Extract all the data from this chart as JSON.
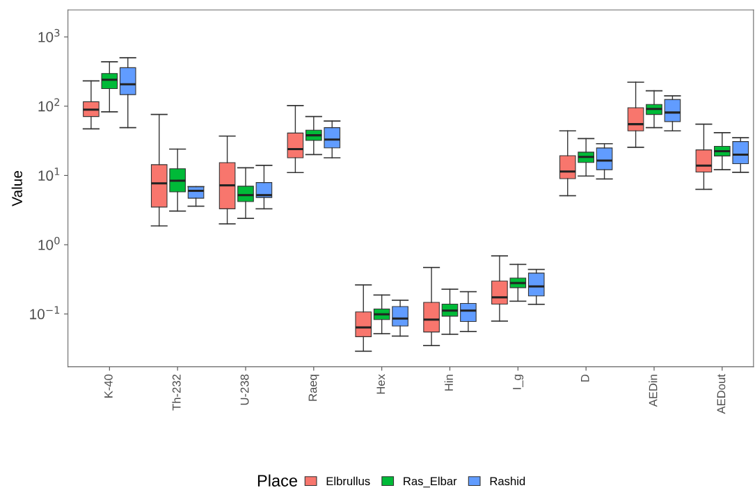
{
  "chart_data": {
    "type": "box",
    "ylabel": "Value",
    "legend_title": "Place",
    "log": "y",
    "grid": false,
    "legend": "bottom",
    "categories": [
      "K-40",
      "Th-232",
      "U-238",
      "Raeq",
      "Hex",
      "Hin",
      "I_g",
      "D",
      "AEDin",
      "AEDout"
    ],
    "ylim": [
      0.0173,
      2450
    ],
    "yticks": [
      {
        "value": 0.1,
        "label": "10$^{−1}$"
      },
      {
        "value": 1,
        "label": "10$^{0}$"
      },
      {
        "value": 10,
        "label": "10$^{1}$"
      },
      {
        "value": 100,
        "label": "10$^{2}$"
      },
      {
        "value": 1000,
        "label": "10$^{3}$"
      }
    ],
    "series": [
      {
        "name": "Elbrullus",
        "color": "#f8766d",
        "boxes": [
          {
            "low": 47,
            "q1": 71,
            "median": 89,
            "q3": 116,
            "high": 232
          },
          {
            "low": 1.87,
            "q1": 3.5,
            "median": 7.7,
            "q3": 14.3,
            "high": 76
          },
          {
            "low": 2.0,
            "q1": 3.3,
            "median": 7.2,
            "q3": 15.3,
            "high": 37
          },
          {
            "low": 11,
            "q1": 18,
            "median": 24,
            "q3": 41,
            "high": 102
          },
          {
            "low": 0.029,
            "q1": 0.047,
            "median": 0.064,
            "q3": 0.107,
            "high": 0.263
          },
          {
            "low": 0.035,
            "q1": 0.055,
            "median": 0.083,
            "q3": 0.147,
            "high": 0.47
          },
          {
            "low": 0.079,
            "q1": 0.139,
            "median": 0.174,
            "q3": 0.3,
            "high": 0.69
          },
          {
            "low": 5.1,
            "q1": 9.0,
            "median": 11.4,
            "q3": 19.3,
            "high": 44
          },
          {
            "low": 25.5,
            "q1": 44,
            "median": 55,
            "q3": 95,
            "high": 222
          },
          {
            "low": 6.3,
            "q1": 11.2,
            "median": 13.9,
            "q3": 23.4,
            "high": 55
          }
        ]
      },
      {
        "name": "Ras_Elbar",
        "color": "#00ba38",
        "boxes": [
          {
            "low": 83,
            "q1": 179,
            "median": 241,
            "q3": 296,
            "high": 438
          },
          {
            "low": 3.06,
            "q1": 5.8,
            "median": 8.4,
            "q3": 12.5,
            "high": 24
          },
          {
            "low": 2.4,
            "q1": 4.2,
            "median": 5.2,
            "q3": 7.0,
            "high": 12.9
          },
          {
            "low": 20,
            "q1": 32,
            "median": 38,
            "q3": 45,
            "high": 71
          },
          {
            "low": 0.052,
            "q1": 0.083,
            "median": 0.099,
            "q3": 0.118,
            "high": 0.188
          },
          {
            "low": 0.051,
            "q1": 0.093,
            "median": 0.112,
            "q3": 0.139,
            "high": 0.228
          },
          {
            "low": 0.153,
            "q1": 0.24,
            "median": 0.28,
            "q3": 0.33,
            "high": 0.52
          },
          {
            "low": 9.8,
            "q1": 15.4,
            "median": 18.5,
            "q3": 21.7,
            "high": 34
          },
          {
            "low": 49,
            "q1": 76,
            "median": 91,
            "q3": 106,
            "high": 167
          },
          {
            "low": 12.1,
            "q1": 19.1,
            "median": 22.4,
            "q3": 26.3,
            "high": 41.5
          }
        ]
      },
      {
        "name": "Rashid",
        "color": "#619cff",
        "boxes": [
          {
            "low": 49,
            "q1": 147,
            "median": 207,
            "q3": 359,
            "high": 499
          },
          {
            "low": 3.6,
            "q1": 4.7,
            "median": 6.0,
            "q3": 6.9,
            "high": 6.9
          },
          {
            "low": 3.3,
            "q1": 4.8,
            "median": 5.2,
            "q3": 7.9,
            "high": 14.0
          },
          {
            "low": 18,
            "q1": 25,
            "median": 33,
            "q3": 49,
            "high": 61
          },
          {
            "low": 0.048,
            "q1": 0.067,
            "median": 0.086,
            "q3": 0.128,
            "high": 0.158
          },
          {
            "low": 0.056,
            "q1": 0.078,
            "median": 0.112,
            "q3": 0.142,
            "high": 0.21
          },
          {
            "low": 0.138,
            "q1": 0.182,
            "median": 0.25,
            "q3": 0.39,
            "high": 0.44
          },
          {
            "low": 8.9,
            "q1": 12.1,
            "median": 16.4,
            "q3": 24.9,
            "high": 28.7
          },
          {
            "low": 44,
            "q1": 60,
            "median": 81,
            "q3": 125,
            "high": 141
          },
          {
            "low": 11.1,
            "q1": 14.8,
            "median": 20,
            "q3": 30.9,
            "high": 35
          }
        ]
      }
    ]
  }
}
